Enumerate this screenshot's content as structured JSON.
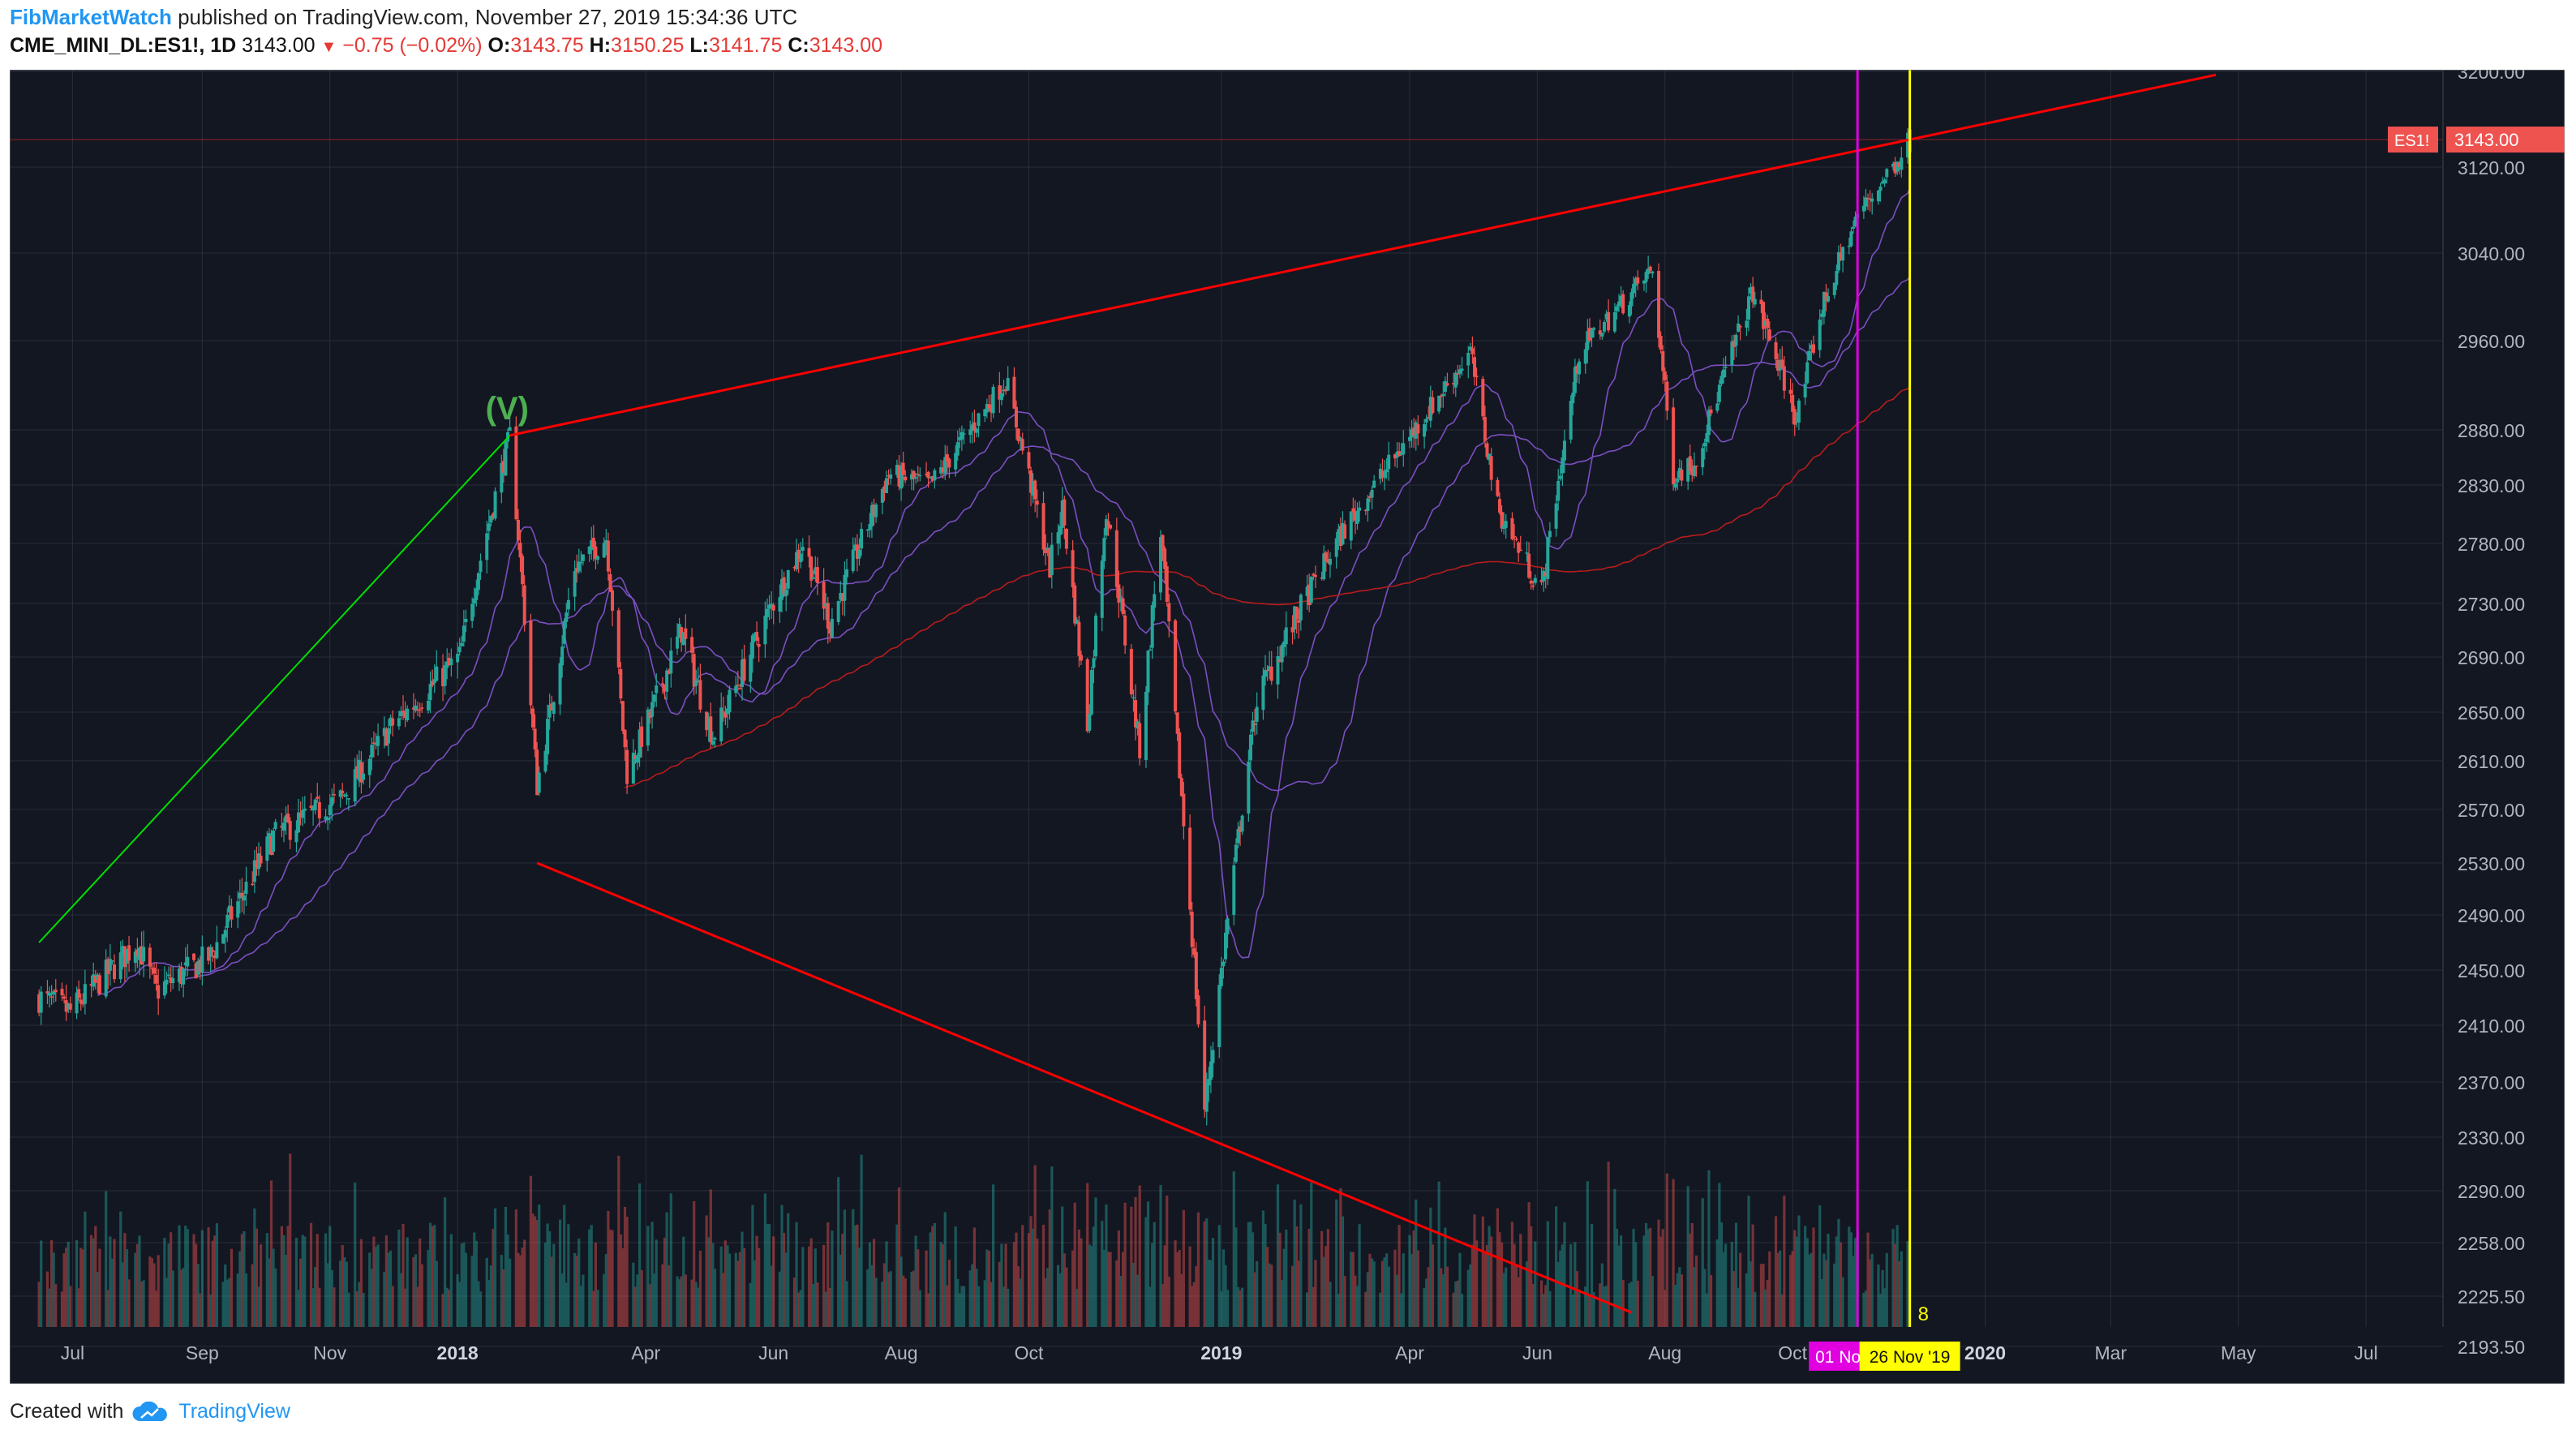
{
  "header": {
    "author": "FibMarketWatch",
    "published": "published on TradingView.com, November 27, 2019 15:34:36 UTC"
  },
  "symbol": {
    "name": "CME_MINI_DL:ES1!, 1D",
    "last": "3143.00",
    "change": "−0.75 (−0.02%)",
    "open_label": "O:",
    "open": "3143.75",
    "high_label": "H:",
    "high": "3150.25",
    "low_label": "L:",
    "low": "3141.75",
    "close_label": "C:",
    "close": "3143.00"
  },
  "footer": {
    "created": "Created with",
    "brand": "TradingView"
  },
  "colors": {
    "background": "#131722",
    "grid": "#2a2e39",
    "up": "#26a69a",
    "down": "#ef5350",
    "trendline": "#ff0000",
    "impulse": "#00e000",
    "magenta": "#e000e0",
    "yellow": "#ffff00",
    "ma_short": "#7b4fc0",
    "ma_long": "#b71c1c",
    "vol_ma": "#c08a5a"
  },
  "chart_data": {
    "type": "candlestick",
    "price_axis_ticks": [
      "3200.00",
      "3120.00",
      "3040.00",
      "2960.00",
      "2880.00",
      "2830.00",
      "2780.00",
      "2730.00",
      "2690.00",
      "2650.00",
      "2610.00",
      "2570.00",
      "2530.00",
      "2490.00",
      "2450.00",
      "2410.00",
      "2370.00",
      "2330.00",
      "2290.00",
      "2258.00",
      "2225.50",
      "2193.50"
    ],
    "time_axis_ticks": [
      "Jul",
      "Sep",
      "Nov",
      "2018",
      "Apr",
      "Jun",
      "Aug",
      "Oct",
      "2019",
      "Apr",
      "Jun",
      "Aug",
      "Oct",
      "2020",
      "Mar",
      "May",
      "Jul"
    ],
    "bold_time_ticks": [
      "2018",
      "2019",
      "2020"
    ],
    "last_price_label": "ES1!",
    "last_price": "3143.00",
    "wave_label": "(V)",
    "marker_magenta_date": "01 Nov '19",
    "marker_yellow_date": "26 Nov '19",
    "bar_count_label": "8",
    "series": [
      {
        "name": "ES1!",
        "type": "close_anchors",
        "x": [
          "2017-06-15",
          "2017-06-30",
          "2017-08-01",
          "2017-08-10",
          "2017-09-05",
          "2017-10-05",
          "2017-11-07",
          "2017-12-01",
          "2018-01-02",
          "2018-01-26",
          "2018-02-08",
          "2018-02-26",
          "2018-03-13",
          "2018-03-23",
          "2018-04-18",
          "2018-05-03",
          "2018-06-15",
          "2018-06-28",
          "2018-07-26",
          "2018-08-15",
          "2018-09-20",
          "2018-10-11",
          "2018-10-17",
          "2018-10-29",
          "2018-11-07",
          "2018-11-23",
          "2018-12-03",
          "2018-12-24",
          "2019-01-18",
          "2019-02-28",
          "2019-04-30",
          "2019-05-13",
          "2019-06-03",
          "2019-06-21",
          "2019-07-26",
          "2019-08-05",
          "2019-08-15",
          "2019-09-12",
          "2019-10-03",
          "2019-10-15",
          "2019-11-01",
          "2019-11-26"
        ],
        "y": [
          2430,
          2420,
          2470,
          2435,
          2460,
          2550,
          2580,
          2640,
          2690,
          2875,
          2590,
          2760,
          2785,
          2600,
          2710,
          2630,
          2780,
          2715,
          2840,
          2830,
          2925,
          2760,
          2810,
          2640,
          2810,
          2620,
          2790,
          2350,
          2660,
          2790,
          2950,
          2810,
          2740,
          2950,
          3025,
          2840,
          2850,
          3005,
          2890,
          2990,
          3075,
          3143
        ]
      }
    ],
    "annotations": {
      "upper_trendline": {
        "x": [
          "2018-01-26",
          "2019-11-26"
        ],
        "y": [
          2875,
          3143
        ]
      },
      "lower_trendline": {
        "x": [
          "2018-02-08",
          "2018-12-24"
        ],
        "y": [
          2530,
          2330
        ]
      },
      "impulse_line": {
        "x": [
          "2017-06-15",
          "2018-01-26"
        ],
        "y": [
          2470,
          2875
        ]
      }
    }
  }
}
